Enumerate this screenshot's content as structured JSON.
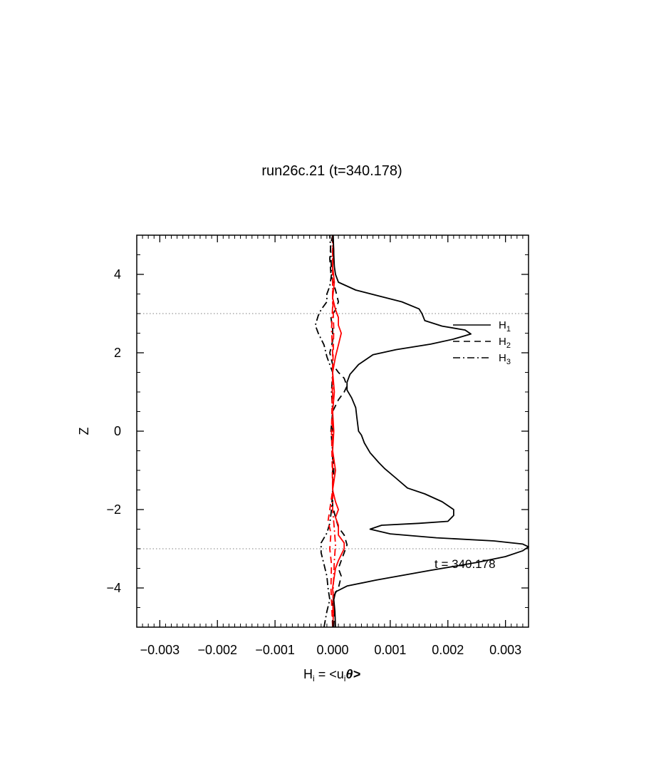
{
  "chart_data": {
    "type": "line",
    "title": "run26c.21 (t=340.178)",
    "xlabel": "H",
    "xlabel_sub": "i",
    "xlabel_rest": " = <u",
    "xlabel_sub2": "i",
    "xlabel_theta": "θ>",
    "ylabel": "Z",
    "xlim": [
      -0.0034,
      0.0034
    ],
    "ylim": [
      -5,
      5
    ],
    "x_ticks": [
      {
        "value": -0.003,
        "label": "−0.003"
      },
      {
        "value": -0.002,
        "label": "−0.002"
      },
      {
        "value": -0.001,
        "label": "−0.001"
      },
      {
        "value": 0.0,
        "label": "0.000"
      },
      {
        "value": 0.001,
        "label": "0.001"
      },
      {
        "value": 0.002,
        "label": "0.002"
      },
      {
        "value": 0.003,
        "label": "0.003"
      }
    ],
    "y_ticks": [
      {
        "value": 4,
        "label": "4"
      },
      {
        "value": 2,
        "label": "2"
      },
      {
        "value": 0,
        "label": "0"
      },
      {
        "value": -2,
        "label": "−2"
      },
      {
        "value": -4,
        "label": "−4"
      }
    ],
    "reference_lines_z": [
      3,
      -3
    ],
    "annotation": "t = 340.178",
    "legend": [
      {
        "name": "H",
        "sub": "1",
        "style": "solid"
      },
      {
        "name": "H",
        "sub": "2",
        "style": "dashed"
      },
      {
        "name": "H",
        "sub": "3",
        "style": "dashdot"
      }
    ],
    "series": [
      {
        "name": "H1",
        "style": "solid",
        "color": "#000000",
        "points": [
          [
            5e-05,
            -5.0
          ],
          [
            4e-05,
            -4.6
          ],
          [
            2e-05,
            -4.3
          ],
          [
            5e-05,
            -4.1
          ],
          [
            0.00025,
            -3.95
          ],
          [
            0.00075,
            -3.8
          ],
          [
            0.0017,
            -3.55
          ],
          [
            0.0025,
            -3.35
          ],
          [
            0.003,
            -3.2
          ],
          [
            0.0033,
            -3.05
          ],
          [
            0.0034,
            -2.95
          ],
          [
            0.0033,
            -2.88
          ],
          [
            0.0028,
            -2.8
          ],
          [
            0.0018,
            -2.72
          ],
          [
            0.001,
            -2.62
          ],
          [
            0.00065,
            -2.5
          ],
          [
            0.00085,
            -2.4
          ],
          [
            0.0015,
            -2.35
          ],
          [
            0.002,
            -2.3
          ],
          [
            0.0021,
            -2.15
          ],
          [
            0.0021,
            -2.0
          ],
          [
            0.0019,
            -1.8
          ],
          [
            0.0016,
            -1.6
          ],
          [
            0.0013,
            -1.45
          ],
          [
            0.0011,
            -1.2
          ],
          [
            0.0009,
            -0.95
          ],
          [
            0.0008,
            -0.8
          ],
          [
            0.00065,
            -0.55
          ],
          [
            0.00055,
            -0.3
          ],
          [
            0.0005,
            -0.1
          ],
          [
            0.00045,
            0.0
          ],
          [
            0.00042,
            0.35
          ],
          [
            0.0004,
            0.6
          ],
          [
            0.00033,
            0.85
          ],
          [
            0.00025,
            1.05
          ],
          [
            0.00025,
            1.25
          ],
          [
            0.0003,
            1.45
          ],
          [
            0.00045,
            1.7
          ],
          [
            0.0007,
            1.95
          ],
          [
            0.0011,
            2.08
          ],
          [
            0.0017,
            2.22
          ],
          [
            0.0021,
            2.35
          ],
          [
            0.0024,
            2.48
          ],
          [
            0.0023,
            2.58
          ],
          [
            0.0019,
            2.68
          ],
          [
            0.0016,
            2.82
          ],
          [
            0.00155,
            3.0
          ],
          [
            0.0015,
            3.12
          ],
          [
            0.0012,
            3.3
          ],
          [
            0.0008,
            3.45
          ],
          [
            0.0004,
            3.6
          ],
          [
            0.0001,
            3.8
          ],
          [
            5e-05,
            4.0
          ],
          [
            3e-05,
            4.2
          ],
          [
            2e-05,
            4.5
          ],
          [
            1e-05,
            5.0
          ]
        ]
      },
      {
        "name": "H2",
        "style": "dashed",
        "color": "#000000",
        "points": [
          [
            2e-05,
            -5.0
          ],
          [
            3e-05,
            -4.6
          ],
          [
            -2e-05,
            -4.3
          ],
          [
            0.0001,
            -4.0
          ],
          [
            0.00015,
            -3.7
          ],
          [
            0.0001,
            -3.5
          ],
          [
            0.00015,
            -3.3
          ],
          [
            0.0002,
            -3.1
          ],
          [
            0.00025,
            -2.9
          ],
          [
            0.0002,
            -2.65
          ],
          [
            0.0001,
            -2.45
          ],
          [
            5e-05,
            -2.2
          ],
          [
            0.0,
            -1.9
          ],
          [
            0.0,
            -1.6
          ],
          [
            2e-05,
            -1.0
          ],
          [
            0.0,
            -0.5
          ],
          [
            -3e-05,
            0.0
          ],
          [
            0.0,
            0.5
          ],
          [
            0.0001,
            0.8
          ],
          [
            0.0002,
            1.0
          ],
          [
            0.00025,
            1.15
          ],
          [
            0.0002,
            1.35
          ],
          [
            0.0001,
            1.5
          ],
          [
            0.0,
            1.7
          ],
          [
            -5e-05,
            2.0
          ],
          [
            0.0,
            2.3
          ],
          [
            0.0,
            2.6
          ],
          [
            -3e-05,
            2.9
          ],
          [
            5e-05,
            3.1
          ],
          [
            0.0001,
            3.3
          ],
          [
            5e-05,
            3.6
          ],
          [
            -3e-05,
            4.0
          ],
          [
            -5e-05,
            4.4
          ],
          [
            -3e-05,
            4.8
          ],
          [
            0.0,
            5.0
          ]
        ]
      },
      {
        "name": "H3",
        "style": "dashdot",
        "color": "#000000",
        "points": [
          [
            -0.00015,
            -5.0
          ],
          [
            -0.0001,
            -4.6
          ],
          [
            -5e-05,
            -4.3
          ],
          [
            -8e-05,
            -4.0
          ],
          [
            -0.0001,
            -3.7
          ],
          [
            -0.00015,
            -3.4
          ],
          [
            -0.0002,
            -3.1
          ],
          [
            -0.0002,
            -2.85
          ],
          [
            -0.0001,
            -2.6
          ],
          [
            -5e-05,
            -2.35
          ],
          [
            -2e-05,
            -2.0
          ],
          [
            0.0,
            -1.5
          ],
          [
            0.0,
            -1.0
          ],
          [
            0.0,
            -0.5
          ],
          [
            0.0,
            0.0
          ],
          [
            0.0,
            0.5
          ],
          [
            -2e-05,
            1.0
          ],
          [
            0.0,
            1.5
          ],
          [
            -0.0001,
            1.9
          ],
          [
            -0.00015,
            2.2
          ],
          [
            -0.00025,
            2.5
          ],
          [
            -0.0003,
            2.7
          ],
          [
            -0.00025,
            2.95
          ],
          [
            -0.0002,
            3.1
          ],
          [
            -0.0001,
            3.3
          ],
          [
            -0.0001,
            3.5
          ],
          [
            -5e-05,
            3.7
          ],
          [
            -2e-05,
            4.0
          ],
          [
            -3e-05,
            4.5
          ],
          [
            -5e-05,
            5.0
          ]
        ]
      },
      {
        "name": "H1 (red)",
        "style": "solid",
        "color": "#ff0000",
        "points": [
          [
            0.0,
            -5.0
          ],
          [
            2e-05,
            -4.5
          ],
          [
            0.0,
            -4.0
          ],
          [
            5e-05,
            -3.5
          ],
          [
            0.0001,
            -3.3
          ],
          [
            0.00015,
            -3.15
          ],
          [
            0.0002,
            -3.0
          ],
          [
            0.0002,
            -2.85
          ],
          [
            0.0001,
            -2.65
          ],
          [
            0.0001,
            -2.4
          ],
          [
            5e-05,
            -2.2
          ],
          [
            0.0001,
            -2.0
          ],
          [
            5e-05,
            -1.8
          ],
          [
            0.0,
            -1.5
          ],
          [
            5e-05,
            -1.0
          ],
          [
            0.0,
            -0.5
          ],
          [
            2e-05,
            0.0
          ],
          [
            0.0,
            0.5
          ],
          [
            3e-05,
            1.0
          ],
          [
            0.0,
            1.5
          ],
          [
            5e-05,
            1.9
          ],
          [
            0.0001,
            2.2
          ],
          [
            0.00015,
            2.5
          ],
          [
            0.0001,
            2.7
          ],
          [
            0.0001,
            2.9
          ],
          [
            5e-05,
            3.1
          ],
          [
            0.0,
            3.4
          ],
          [
            3e-05,
            3.8
          ],
          [
            0.0,
            4.2
          ],
          [
            2e-05,
            4.6
          ],
          [
            0.0,
            5.0
          ]
        ]
      },
      {
        "name": "H2 (red)",
        "style": "dashed",
        "color": "#ff0000",
        "points": [
          [
            0.0,
            -5.0
          ],
          [
            -3e-05,
            -4.0
          ],
          [
            -2e-05,
            -3.4
          ],
          [
            -5e-05,
            -3.0
          ],
          [
            -3e-05,
            -2.6
          ],
          [
            -8e-05,
            -2.3
          ],
          [
            -5e-05,
            -2.0
          ],
          [
            0.0,
            -1.5
          ],
          [
            -2e-05,
            0.0
          ],
          [
            0.0,
            1.5
          ],
          [
            2e-05,
            2.6
          ],
          [
            0.0,
            3.4
          ],
          [
            0.0,
            5.0
          ]
        ]
      },
      {
        "name": "H3 (red)",
        "style": "dashdot",
        "color": "#ff0000",
        "points": [
          [
            0.0,
            -5.0
          ],
          [
            1e-05,
            -4.0
          ],
          [
            3e-05,
            -3.3
          ],
          [
            5e-05,
            -2.9
          ],
          [
            3e-05,
            -2.5
          ],
          [
            0.0,
            -2.0
          ],
          [
            0.0,
            0.0
          ],
          [
            0.0,
            2.0
          ],
          [
            -2e-05,
            2.6
          ],
          [
            0.0,
            3.2
          ],
          [
            0.0,
            5.0
          ]
        ]
      }
    ]
  }
}
